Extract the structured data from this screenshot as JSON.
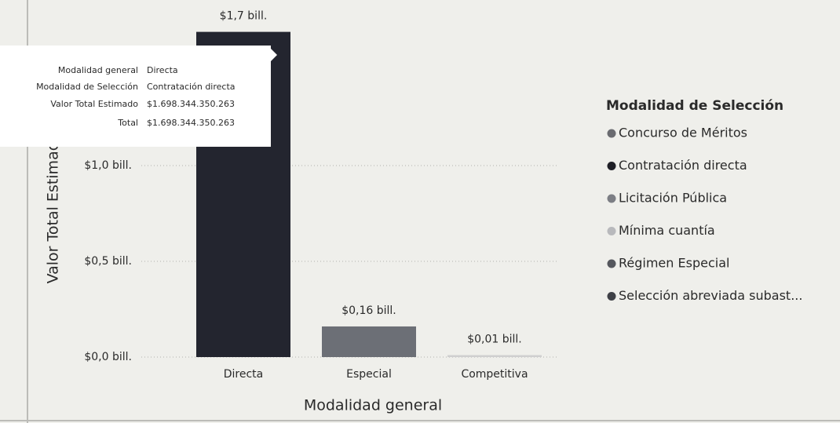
{
  "chart_data": {
    "type": "bar",
    "x_label": "Modalidad general",
    "y_label": "Valor Total Estimado",
    "categories": [
      "Directa",
      "Especial",
      "Competitiva"
    ],
    "values": [
      1.698344350263,
      0.16,
      0.01
    ],
    "value_labels": [
      "$1,7 bill.",
      "$0,16 bill.",
      "$0,01 bill."
    ],
    "colors": [
      "#23252f",
      "#6c6f76",
      "#cfcfcf"
    ],
    "ylim": [
      0,
      1.75
    ],
    "yticks": [
      {
        "value": 0,
        "label": "$0,0 bill."
      },
      {
        "value": 0.5,
        "label": "$0,5 bill."
      },
      {
        "value": 1.0,
        "label": "$1,0 bill."
      }
    ],
    "grid": true,
    "legend": {
      "title": "Modalidad de Selección",
      "items": [
        {
          "name": "Concurso de Méritos",
          "color": "#6a6b70"
        },
        {
          "name": "Contratación directa",
          "color": "#1e1f26"
        },
        {
          "name": "Licitación Pública",
          "color": "#7c7e84"
        },
        {
          "name": "Mínima cuantía",
          "color": "#b8b9bc"
        },
        {
          "name": "Régimen Especial",
          "color": "#55575d"
        },
        {
          "name": "Selección abreviada subast...",
          "color": "#3e4046"
        }
      ]
    },
    "tooltip": [
      {
        "label": "Modalidad general",
        "value": "Directa"
      },
      {
        "label": "Modalidad de Selección",
        "value": "Contratación directa"
      },
      {
        "label": "Valor Total Estimado",
        "value": "$1.698.344.350.263"
      },
      {
        "label": "Total",
        "value": "$1.698.344.350.263"
      }
    ]
  }
}
